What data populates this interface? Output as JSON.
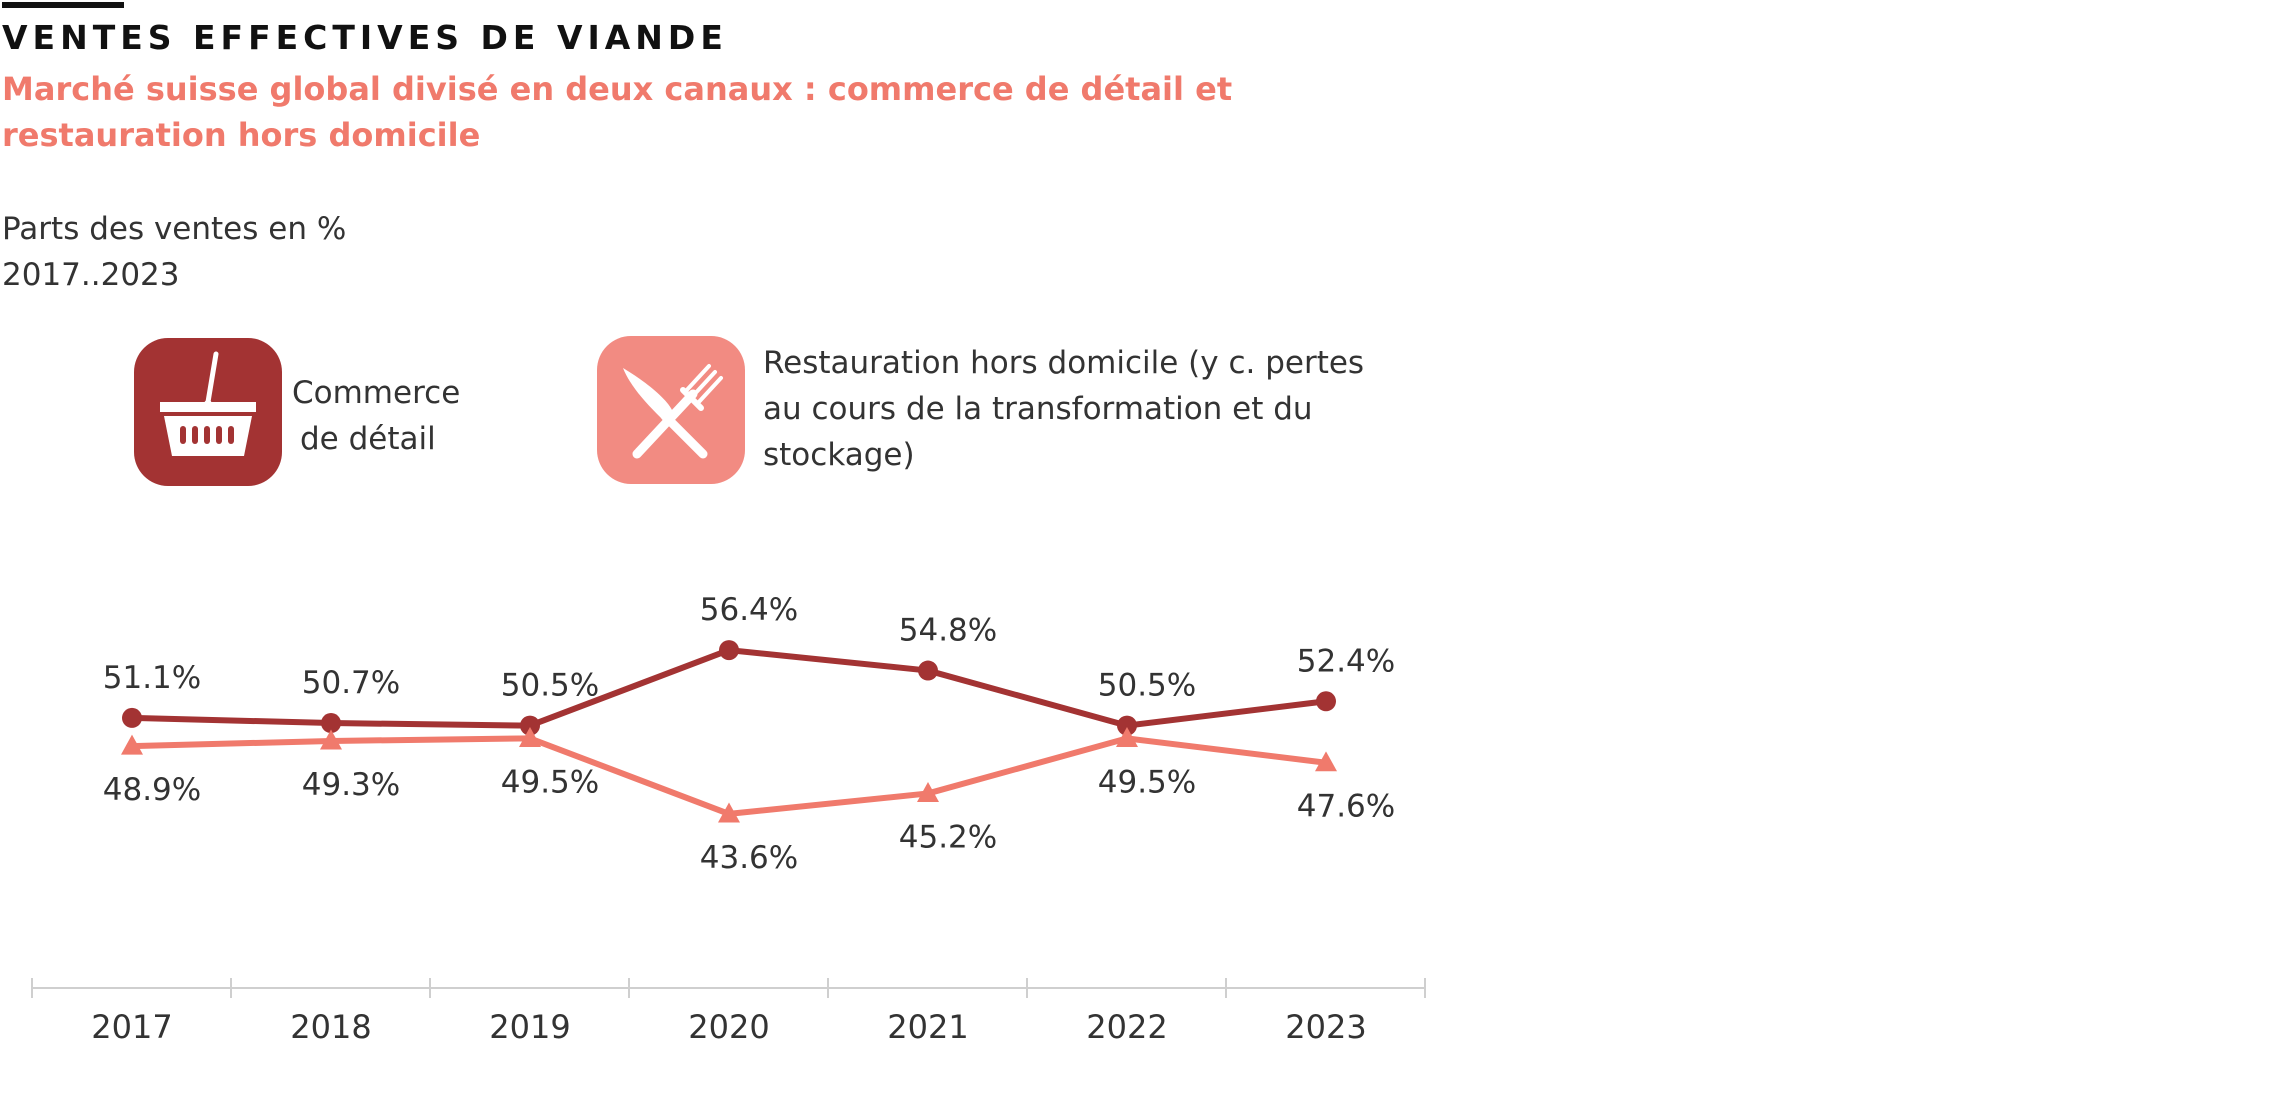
{
  "header": {
    "title": "VENTES EFFECTIVES DE VIANDE",
    "subtitle": "Marché suisse global divisé en deux canaux : commerce de détail et restauration hors domicile",
    "measure": "Parts des ventes en %",
    "period": "2017..2023"
  },
  "legend": {
    "retail": {
      "label_line1": "Commerce",
      "label_line2": "de détail",
      "icon": "shopping-basket-icon",
      "color": "#a33333"
    },
    "food": {
      "label": "Restauration hors domicile (y c. pertes au cours de la transformation et du stockage)",
      "icon": "knife-fork-icon",
      "color": "#f28b82"
    }
  },
  "chart_data": {
    "type": "line",
    "title": "VENTES EFFECTIVES DE VIANDE",
    "subtitle": "Marché suisse global divisé en deux canaux : commerce de détail et restauration hors domicile",
    "ylabel": "Parts des ventes en %",
    "categories": [
      "2017",
      "2018",
      "2019",
      "2020",
      "2021",
      "2022",
      "2023"
    ],
    "ylim": [
      30,
      65
    ],
    "grid": false,
    "legend_position": "top",
    "series": [
      {
        "name": "Commerce de détail",
        "values": [
          51.1,
          50.7,
          50.5,
          56.4,
          54.8,
          50.5,
          52.4
        ],
        "labels": [
          "51.1%",
          "50.7%",
          "50.5%",
          "56.4%",
          "54.8%",
          "50.5%",
          "52.4%"
        ],
        "marker": "circle",
        "color": "#a33333"
      },
      {
        "name": "Restauration hors domicile (y c. pertes au cours de la transformation et du stockage)",
        "values": [
          48.9,
          49.3,
          49.5,
          43.6,
          45.2,
          49.5,
          47.6
        ],
        "labels": [
          "48.9%",
          "49.3%",
          "49.5%",
          "43.6%",
          "45.2%",
          "49.5%",
          "47.6%"
        ],
        "marker": "triangle",
        "color": "#f07a6c"
      }
    ]
  }
}
